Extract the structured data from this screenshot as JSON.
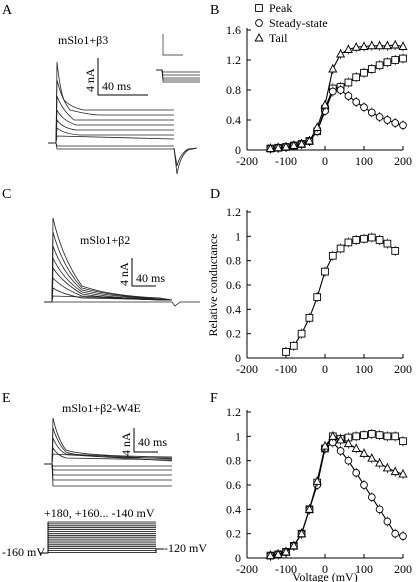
{
  "panels": {
    "A": {
      "letter": "A",
      "construct": "mSlo1+β3",
      "scalebar_current": "4 nA",
      "scalebar_time": "40 ms"
    },
    "B": {
      "letter": "B"
    },
    "C": {
      "letter": "C",
      "construct": "mSlo1+β2",
      "scalebar_current": "4 nA",
      "scalebar_time": "40 ms"
    },
    "D": {
      "letter": "D"
    },
    "E": {
      "letter": "E",
      "construct": "mSlo1+β2-W4E",
      "scalebar_current": "4 nA",
      "scalebar_time": "40 ms"
    },
    "F": {
      "letter": "F"
    }
  },
  "protocol": {
    "steps_label": "+180, +160... -140 mV",
    "holding_label": "-160 mV",
    "post_label": "-120 mV"
  },
  "chart_data": [
    {
      "panel": "B",
      "type": "scatter",
      "xlim": [
        -200,
        200
      ],
      "ylim": [
        0,
        1.6
      ],
      "xticks": [
        -200,
        -100,
        0,
        100,
        200
      ],
      "yticks": [
        0,
        0.4,
        0.8,
        1.2,
        1.6
      ],
      "ytick_labels": [
        "0",
        "0.4",
        "0.8",
        "1.2",
        "1.6"
      ],
      "xlabel": "",
      "ylabel": "",
      "legend_position": "top-left",
      "series": [
        {
          "name": "Peak",
          "marker": "square",
          "x": [
            -140,
            -120,
            -100,
            -80,
            -60,
            -40,
            -20,
            0,
            20,
            40,
            60,
            80,
            100,
            120,
            140,
            160,
            180,
            200
          ],
          "y": [
            0.02,
            0.03,
            0.04,
            0.06,
            0.08,
            0.12,
            0.25,
            0.55,
            0.82,
            0.84,
            0.9,
            0.97,
            1.03,
            1.08,
            1.13,
            1.17,
            1.2,
            1.22
          ]
        },
        {
          "name": "Steady-state",
          "marker": "circle",
          "x": [
            -140,
            -120,
            -100,
            -80,
            -60,
            -40,
            -20,
            0,
            20,
            40,
            60,
            80,
            100,
            120,
            140,
            160,
            180,
            200
          ],
          "y": [
            0.02,
            0.03,
            0.04,
            0.06,
            0.08,
            0.12,
            0.25,
            0.52,
            0.78,
            0.8,
            0.72,
            0.64,
            0.57,
            0.5,
            0.44,
            0.4,
            0.36,
            0.33
          ]
        },
        {
          "name": "Tail",
          "marker": "triangle",
          "x": [
            -140,
            -120,
            -100,
            -80,
            -60,
            -40,
            -20,
            0,
            20,
            40,
            60,
            80,
            100,
            120,
            140,
            160,
            180,
            200
          ],
          "y": [
            0.02,
            0.03,
            0.04,
            0.06,
            0.08,
            0.12,
            0.3,
            0.6,
            1.08,
            1.28,
            1.34,
            1.37,
            1.38,
            1.39,
            1.39,
            1.39,
            1.4,
            1.38
          ]
        }
      ]
    },
    {
      "panel": "D",
      "type": "scatter",
      "xlim": [
        -200,
        200
      ],
      "ylim": [
        0,
        1.2
      ],
      "xticks": [
        -200,
        -100,
        0,
        100,
        200
      ],
      "yticks": [
        0,
        0.2,
        0.4,
        0.6,
        0.8,
        1,
        1.2
      ],
      "ytick_labels": [
        "0",
        "0.2",
        "0.4",
        "0.6",
        "0.8",
        "1",
        "1.2"
      ],
      "xlabel": "",
      "ylabel": "Relative conductance",
      "series": [
        {
          "marker": "square",
          "x": [
            -100,
            -80,
            -60,
            -40,
            -20,
            0,
            20,
            40,
            60,
            80,
            100,
            120,
            140,
            160,
            180
          ],
          "y": [
            0.05,
            0.1,
            0.2,
            0.33,
            0.5,
            0.71,
            0.84,
            0.9,
            0.95,
            0.97,
            0.98,
            0.99,
            0.97,
            0.94,
            0.88
          ]
        }
      ]
    },
    {
      "panel": "F",
      "type": "scatter",
      "xlim": [
        -200,
        200
      ],
      "ylim": [
        0,
        1.2
      ],
      "xticks": [
        -200,
        -100,
        0,
        100,
        200
      ],
      "yticks": [
        0,
        0.2,
        0.4,
        0.6,
        0.8,
        1,
        1.2
      ],
      "ytick_labels": [
        "0",
        "0.2",
        "0.4",
        "0.6",
        "0.8",
        "1",
        "1.2"
      ],
      "xlabel": "Voltage (mV)",
      "ylabel": "",
      "series": [
        {
          "marker": "square",
          "x": [
            -140,
            -120,
            -100,
            -80,
            -60,
            -40,
            -20,
            0,
            20,
            40,
            60,
            80,
            100,
            120,
            140,
            160,
            180,
            200
          ],
          "y": [
            0.02,
            0.03,
            0.05,
            0.1,
            0.2,
            0.4,
            0.62,
            0.9,
            1.0,
            0.98,
            0.99,
            1.0,
            1.01,
            1.02,
            1.01,
            1.0,
            1.0,
            0.96
          ]
        },
        {
          "marker": "circle",
          "x": [
            -140,
            -120,
            -100,
            -80,
            -60,
            -40,
            -20,
            0,
            20,
            40,
            60,
            80,
            100,
            120,
            140,
            160,
            180,
            200
          ],
          "y": [
            0.02,
            0.03,
            0.05,
            0.1,
            0.2,
            0.4,
            0.6,
            0.9,
            0.95,
            0.88,
            0.8,
            0.7,
            0.6,
            0.5,
            0.4,
            0.3,
            0.2,
            0.18
          ]
        },
        {
          "marker": "triangle",
          "x": [
            -140,
            -120,
            -100,
            -80,
            -60,
            -40,
            -20,
            0,
            20,
            40,
            60,
            80,
            100,
            120,
            140,
            160,
            180,
            200
          ],
          "y": [
            0.02,
            0.03,
            0.05,
            0.1,
            0.2,
            0.4,
            0.63,
            0.92,
            1.0,
            0.97,
            0.94,
            0.9,
            0.86,
            0.82,
            0.78,
            0.74,
            0.71,
            0.69
          ]
        }
      ]
    }
  ]
}
